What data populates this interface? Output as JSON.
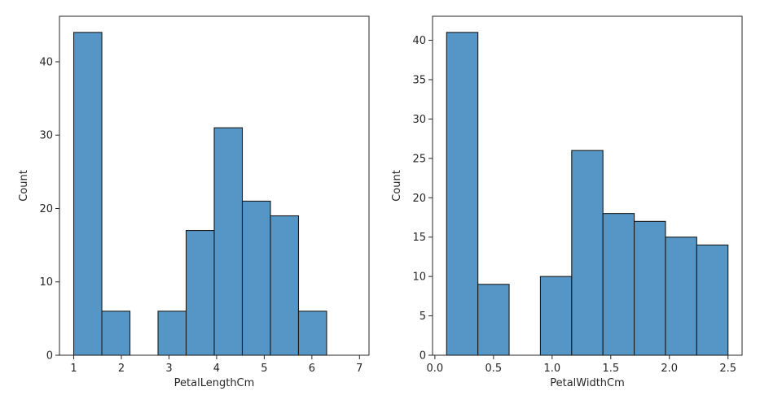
{
  "colors": {
    "bar_fill": "#5596c6",
    "bar_edge": "#1a1a1a",
    "axis": "#262626",
    "background": "#ffffff"
  },
  "chart_data": [
    {
      "type": "bar",
      "subtype": "histogram",
      "title": "",
      "xlabel": "PetalLengthCm",
      "ylabel": "Count",
      "xlim": [
        0.7,
        7.2
      ],
      "ylim": [
        0,
        46.2
      ],
      "xticks": [
        1,
        2,
        3,
        4,
        5,
        6,
        7
      ],
      "xtick_labels": [
        "1",
        "2",
        "3",
        "4",
        "5",
        "6",
        "7"
      ],
      "yticks": [
        0,
        10,
        20,
        30,
        40
      ],
      "ytick_labels": [
        "0",
        "10",
        "20",
        "30",
        "40"
      ],
      "bins": [
        1.0,
        1.59,
        2.18,
        2.77,
        3.36,
        3.95,
        4.54,
        5.13,
        5.72,
        6.31,
        6.9
      ],
      "counts": [
        44,
        6,
        0,
        6,
        17,
        31,
        21,
        19,
        6,
        0
      ],
      "grid": false,
      "legend": "none"
    },
    {
      "type": "bar",
      "subtype": "histogram",
      "title": "",
      "xlabel": "PetalWidthCm",
      "ylabel": "Count",
      "xlim": [
        -0.02,
        2.62
      ],
      "ylim": [
        0,
        43.05
      ],
      "xticks": [
        0.0,
        0.5,
        1.0,
        1.5,
        2.0,
        2.5
      ],
      "xtick_labels": [
        "0.0",
        "0.5",
        "1.0",
        "1.5",
        "2.0",
        "2.5"
      ],
      "yticks": [
        0,
        5,
        10,
        15,
        20,
        25,
        30,
        35,
        40
      ],
      "ytick_labels": [
        "0",
        "5",
        "10",
        "15",
        "20",
        "25",
        "30",
        "35",
        "40"
      ],
      "bins": [
        0.1,
        0.3667,
        0.6333,
        0.9,
        1.1667,
        1.4333,
        1.7,
        1.9667,
        2.2333,
        2.5
      ],
      "counts": [
        41,
        9,
        0,
        10,
        26,
        18,
        17,
        15,
        14
      ],
      "grid": false,
      "legend": "none"
    }
  ]
}
